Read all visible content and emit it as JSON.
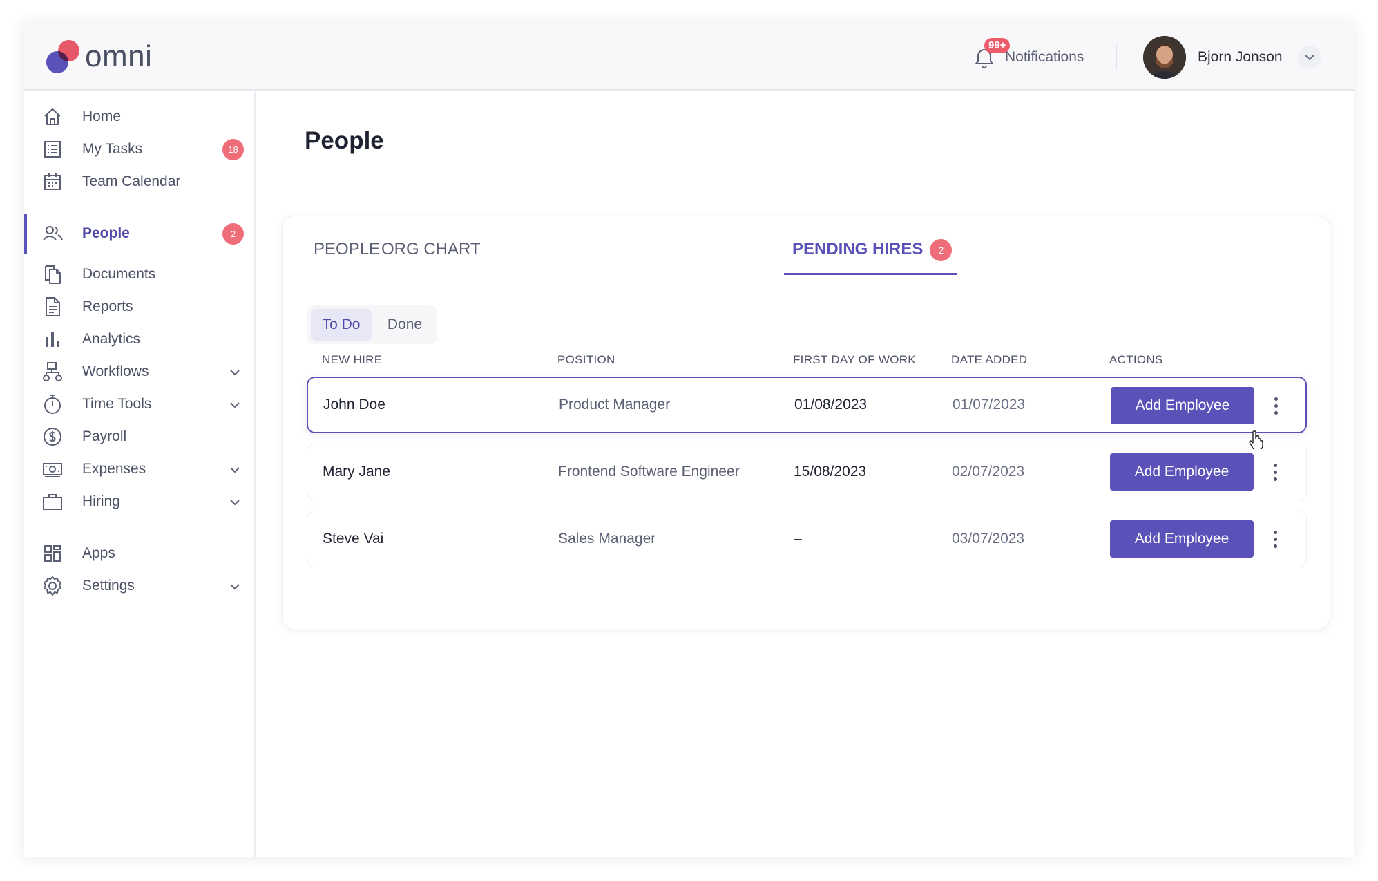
{
  "brand": {
    "name": "omni"
  },
  "header": {
    "notifications_label": "Notifications",
    "notifications_badge": "99+",
    "user_name": "Bjorn Jonson"
  },
  "sidebar": {
    "items": [
      {
        "label": "Home",
        "icon": "home-icon"
      },
      {
        "label": "My Tasks",
        "icon": "tasks-icon",
        "badge": "18"
      },
      {
        "label": "Team Calendar",
        "icon": "calendar-icon"
      },
      {
        "label": "People",
        "icon": "people-icon",
        "badge": "2",
        "active": true
      },
      {
        "label": "Documents",
        "icon": "documents-icon"
      },
      {
        "label": "Reports",
        "icon": "reports-icon"
      },
      {
        "label": "Analytics",
        "icon": "analytics-icon"
      },
      {
        "label": "Workflows",
        "icon": "workflows-icon",
        "expandable": true
      },
      {
        "label": "Time Tools",
        "icon": "timer-icon",
        "expandable": true
      },
      {
        "label": "Payroll",
        "icon": "dollar-icon"
      },
      {
        "label": "Expenses",
        "icon": "cash-icon",
        "expandable": true
      },
      {
        "label": "Hiring",
        "icon": "briefcase-icon",
        "expandable": true
      },
      {
        "label": "Apps",
        "icon": "apps-grid-icon"
      },
      {
        "label": "Settings",
        "icon": "gear-icon",
        "expandable": true
      }
    ]
  },
  "main": {
    "title": "People",
    "tabs": [
      {
        "label": "PEOPLE"
      },
      {
        "label": "ORG CHART"
      },
      {
        "label": "PENDING HIRES",
        "badge": "2",
        "active": true
      }
    ],
    "filter": {
      "todo": "To Do",
      "done": "Done",
      "selected": "To Do"
    },
    "columns": [
      "NEW HIRE",
      "POSITION",
      "FIRST DAY OF WORK",
      "DATE ADDED",
      "ACTIONS"
    ],
    "rows": [
      {
        "name": "John Doe",
        "position": "Product Manager",
        "first_day": "01/08/2023",
        "date_added": "01/07/2023",
        "action": "Add Employee"
      },
      {
        "name": "Mary Jane",
        "position": "Frontend Software Engineer",
        "first_day": "15/08/2023",
        "date_added": "02/07/2023",
        "action": "Add Employee"
      },
      {
        "name": "Steve Vai",
        "position": "Sales Manager",
        "first_day": "–",
        "date_added": "03/07/2023",
        "action": "Add Employee"
      }
    ]
  },
  "colors": {
    "accent": "#5a52b8",
    "badge": "#ee6d78",
    "logo_red": "#ee5b6b"
  }
}
